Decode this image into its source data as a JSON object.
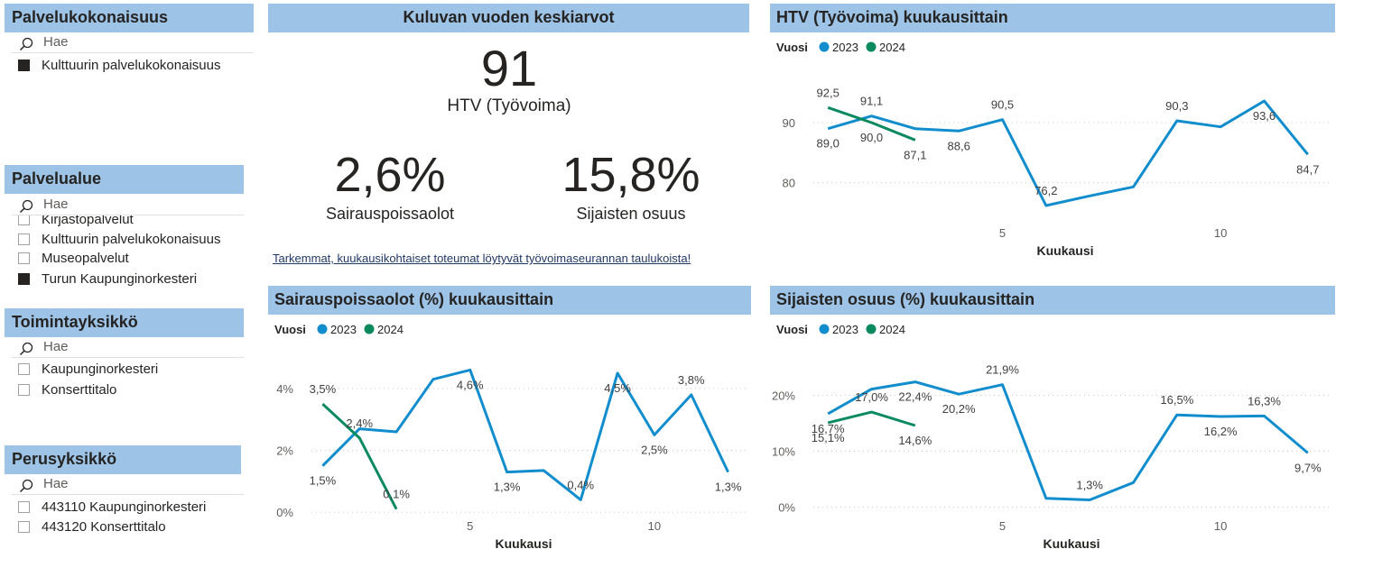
{
  "slicers": {
    "palvelukokonaisuus": {
      "title": "Palvelukokonaisuus",
      "search_placeholder": "Hae",
      "items": [
        {
          "label": "Kulttuurin palvelukokonaisuus",
          "checked": true
        }
      ]
    },
    "palvelualue": {
      "title": "Palvelualue",
      "search_placeholder": "Hae",
      "items": [
        {
          "label": "Kirjastopalvelut",
          "checked": false
        },
        {
          "label": "Kulttuurin palvelukokonaisuus",
          "checked": false
        },
        {
          "label": "Museopalvelut",
          "checked": false
        },
        {
          "label": "Turun Kaupunginorkesteri",
          "checked": true
        }
      ]
    },
    "toimintayksikko": {
      "title": "Toimintayksikkö",
      "search_placeholder": "Hae",
      "items": [
        {
          "label": "Kaupunginorkesteri",
          "checked": false
        },
        {
          "label": "Konserttitalo",
          "checked": false
        }
      ]
    },
    "perusyksikko": {
      "title": "Perusyksikkö",
      "search_placeholder": "Hae",
      "items": [
        {
          "label": "443110 Kaupunginorkesteri",
          "checked": false
        },
        {
          "label": "443120 Konserttitalo",
          "checked": false
        }
      ]
    }
  },
  "kpi": {
    "title": "Kuluvan vuoden keskiarvot",
    "htv_value": "91",
    "htv_label": "HTV (Työvoima)",
    "sick_value": "2,6%",
    "sick_label": "Sairauspoissaolot",
    "subst_value": "15,8%",
    "subst_label": "Sijaisten osuus",
    "link_text": "Tarkemmat, kuukausikohtaiset toteumat löytyvät työvoimaseurannan taulukoista!"
  },
  "colors": {
    "series_2023": "#118dce",
    "series_2024": "#0b8a5e",
    "header_bg": "#9dc3e6"
  },
  "chart_data": [
    {
      "id": "htv",
      "type": "line",
      "title": "HTV (Työvoima) kuukausittain",
      "legend_title": "Vuosi",
      "legend_position": "top-left",
      "xlabel": "Kuukausi",
      "ylabel": "",
      "x_ticks": [
        5,
        10
      ],
      "y_ticks": [
        {
          "v": 80,
          "t": "80"
        },
        {
          "v": 90,
          "t": "90"
        }
      ],
      "ylim": [
        73.5,
        100.5
      ],
      "xlim": [
        0.5,
        12.5
      ],
      "grid": true,
      "series": [
        {
          "name": "2023",
          "x": [
            1,
            2,
            3,
            4,
            5,
            6,
            7,
            8,
            9,
            10,
            11,
            12
          ],
          "values": [
            89.0,
            91.1,
            89.0,
            88.6,
            90.5,
            76.2,
            77.8,
            79.3,
            90.3,
            89.3,
            93.6,
            84.7
          ],
          "labels": [
            {
              "i": 0,
              "t": "89,0",
              "pos": "below"
            },
            {
              "i": 1,
              "t": "91,1",
              "pos": "above"
            },
            {
              "i": 3,
              "t": "88,6",
              "pos": "below"
            },
            {
              "i": 4,
              "t": "90,5",
              "pos": "above"
            },
            {
              "i": 5,
              "t": "76,2",
              "pos": "above"
            },
            {
              "i": 8,
              "t": "90,3",
              "pos": "above"
            },
            {
              "i": 10,
              "t": "93,6",
              "pos": "below"
            },
            {
              "i": 11,
              "t": "84,7",
              "pos": "below"
            }
          ]
        },
        {
          "name": "2024",
          "x": [
            1,
            2,
            3
          ],
          "values": [
            92.5,
            90.0,
            87.1
          ],
          "labels": [
            {
              "i": 0,
              "t": "92,5",
              "pos": "above"
            },
            {
              "i": 1,
              "t": "90,0",
              "pos": "below"
            },
            {
              "i": 2,
              "t": "87,1",
              "pos": "below"
            }
          ]
        }
      ]
    },
    {
      "id": "sick",
      "type": "line",
      "title": "Sairauspoissaolot (%) kuukausittain",
      "legend_title": "Vuosi",
      "legend_position": "top-left",
      "xlabel": "Kuukausi",
      "ylabel": "",
      "x_ticks": [
        5,
        10
      ],
      "y_ticks": [
        {
          "v": 0,
          "t": "0%"
        },
        {
          "v": 2,
          "t": "2%"
        },
        {
          "v": 4,
          "t": "4%"
        }
      ],
      "ylim": [
        -0.2,
        5.05
      ],
      "xlim": [
        0.5,
        12.5
      ],
      "grid": true,
      "series": [
        {
          "name": "2023",
          "x": [
            1,
            2,
            3,
            4,
            5,
            6,
            7,
            8,
            9,
            10,
            11,
            12
          ],
          "values": [
            1.5,
            2.7,
            2.6,
            4.3,
            4.6,
            1.3,
            1.35,
            0.4,
            4.5,
            2.5,
            3.8,
            1.3
          ],
          "labels": [
            {
              "i": 0,
              "t": "1,5%",
              "pos": "below"
            },
            {
              "i": 4,
              "t": "4,6%",
              "pos": "below"
            },
            {
              "i": 5,
              "t": "1,3%",
              "pos": "below"
            },
            {
              "i": 7,
              "t": "0,4%",
              "pos": "above"
            },
            {
              "i": 8,
              "t": "4,5%",
              "pos": "below"
            },
            {
              "i": 9,
              "t": "2,5%",
              "pos": "below"
            },
            {
              "i": 10,
              "t": "3,8%",
              "pos": "above"
            },
            {
              "i": 11,
              "t": "1,3%",
              "pos": "below"
            }
          ]
        },
        {
          "name": "2024",
          "x": [
            1,
            2,
            3
          ],
          "values": [
            3.5,
            2.4,
            0.1
          ],
          "labels": [
            {
              "i": 0,
              "t": "3,5%",
              "pos": "above"
            },
            {
              "i": 1,
              "t": "2,4%",
              "pos": "above"
            },
            {
              "i": 2,
              "t": "0,1%",
              "pos": "above"
            }
          ]
        }
      ]
    },
    {
      "id": "subst",
      "type": "line",
      "title": "Sijaisten osuus (%) kuukausittain",
      "legend_title": "Vuosi",
      "legend_position": "top-left",
      "xlabel": "Kuukausi",
      "ylabel": "",
      "x_ticks": [
        5,
        10
      ],
      "y_ticks": [
        {
          "v": 0,
          "t": "0%"
        },
        {
          "v": 10,
          "t": "10%"
        },
        {
          "v": 20,
          "t": "20%"
        }
      ],
      "ylim": [
        -2,
        27
      ],
      "xlim": [
        0.5,
        12.5
      ],
      "grid": true,
      "series": [
        {
          "name": "2023",
          "x": [
            1,
            2,
            3,
            4,
            5,
            6,
            7,
            8,
            9,
            10,
            11,
            12
          ],
          "values": [
            16.7,
            21.1,
            22.4,
            20.2,
            21.9,
            1.6,
            1.3,
            4.4,
            16.5,
            16.2,
            16.3,
            9.7
          ],
          "labels": [
            {
              "i": 0,
              "t": "16,7%",
              "pos": "below"
            },
            {
              "i": 2,
              "t": "22,4%",
              "pos": "below"
            },
            {
              "i": 3,
              "t": "20,2%",
              "pos": "below"
            },
            {
              "i": 4,
              "t": "21,9%",
              "pos": "above"
            },
            {
              "i": 6,
              "t": "1,3%",
              "pos": "above"
            },
            {
              "i": 8,
              "t": "16,5%",
              "pos": "above"
            },
            {
              "i": 9,
              "t": "16,2%",
              "pos": "below"
            },
            {
              "i": 10,
              "t": "16,3%",
              "pos": "above"
            },
            {
              "i": 11,
              "t": "9,7%",
              "pos": "below"
            }
          ]
        },
        {
          "name": "2024",
          "x": [
            1,
            2,
            3
          ],
          "values": [
            15.1,
            17.0,
            14.6
          ],
          "labels": [
            {
              "i": 0,
              "t": "15,1%",
              "pos": "below"
            },
            {
              "i": 1,
              "t": "17,0%",
              "pos": "above"
            },
            {
              "i": 2,
              "t": "14,6%",
              "pos": "below"
            }
          ]
        }
      ]
    }
  ]
}
